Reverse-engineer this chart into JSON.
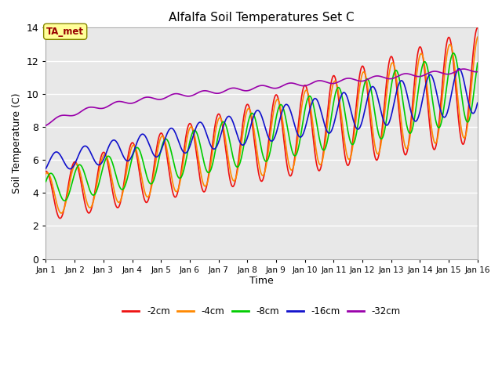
{
  "title": "Alfalfa Soil Temperatures Set C",
  "xlabel": "Time",
  "ylabel": "Soil Temperature (C)",
  "xlim": [
    0,
    15
  ],
  "ylim": [
    0,
    14
  ],
  "yticks": [
    0,
    2,
    4,
    6,
    8,
    10,
    12,
    14
  ],
  "xtick_labels": [
    "Jan 1",
    "Jan 2",
    "Jan 3",
    "Jan 4",
    "Jan 5",
    "Jan 6",
    "Jan 7",
    "Jan 8",
    "Jan 9",
    "Jan 10",
    "Jan 11",
    "Jan 12",
    "Jan 13",
    "Jan 14",
    "Jan 15",
    "Jan 16"
  ],
  "annotation_label": "TA_met",
  "annotation_color": "#990000",
  "annotation_bg": "#ffff99",
  "annotation_border": "#888800",
  "series_colors": [
    "#ee1111",
    "#ff8800",
    "#00cc00",
    "#1111cc",
    "#9900aa"
  ],
  "series_labels": [
    "-2cm",
    "-4cm",
    "-8cm",
    "-16cm",
    "-32cm"
  ],
  "fig_bg_color": "#ffffff",
  "plot_bg_color": "#e8e8e8",
  "grid_color": "#ffffff",
  "n_days": 15,
  "n_pts_per_day": 48
}
